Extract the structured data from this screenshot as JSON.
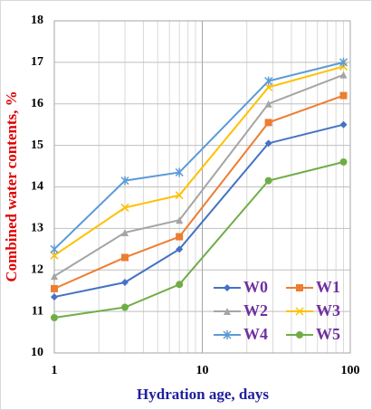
{
  "chart_data": {
    "type": "line",
    "x_label": "Hydration age, days",
    "y_label": "Combined water contents, %",
    "x": [
      1,
      3,
      7,
      28,
      90
    ],
    "series": [
      {
        "name": "W0",
        "color": "#4472c4",
        "marker": "diamond",
        "values": [
          11.35,
          11.7,
          12.5,
          15.05,
          15.5
        ]
      },
      {
        "name": "W1",
        "color": "#ed7d31",
        "marker": "square",
        "values": [
          11.55,
          12.3,
          12.8,
          15.55,
          16.2
        ]
      },
      {
        "name": "W2",
        "color": "#a5a5a5",
        "marker": "triangle",
        "values": [
          11.85,
          12.9,
          13.2,
          16.0,
          16.7
        ]
      },
      {
        "name": "W3",
        "color": "#ffc000",
        "marker": "x",
        "values": [
          12.35,
          13.5,
          13.8,
          16.4,
          16.9
        ]
      },
      {
        "name": "W4",
        "color": "#5b9bd5",
        "marker": "star",
        "values": [
          12.5,
          14.15,
          14.35,
          16.55,
          17.0
        ]
      },
      {
        "name": "W5",
        "color": "#70ad47",
        "marker": "circle",
        "values": [
          10.85,
          11.1,
          11.65,
          14.15,
          14.6
        ]
      }
    ],
    "xlim": [
      1,
      100
    ],
    "xticks": [
      1,
      10,
      100
    ],
    "x_log": true,
    "ylim": [
      10,
      18
    ],
    "yticks": [
      10,
      11,
      12,
      13,
      14,
      15,
      16,
      17,
      18
    ],
    "grid": true,
    "minor_grid": true,
    "legend": "lower right"
  }
}
